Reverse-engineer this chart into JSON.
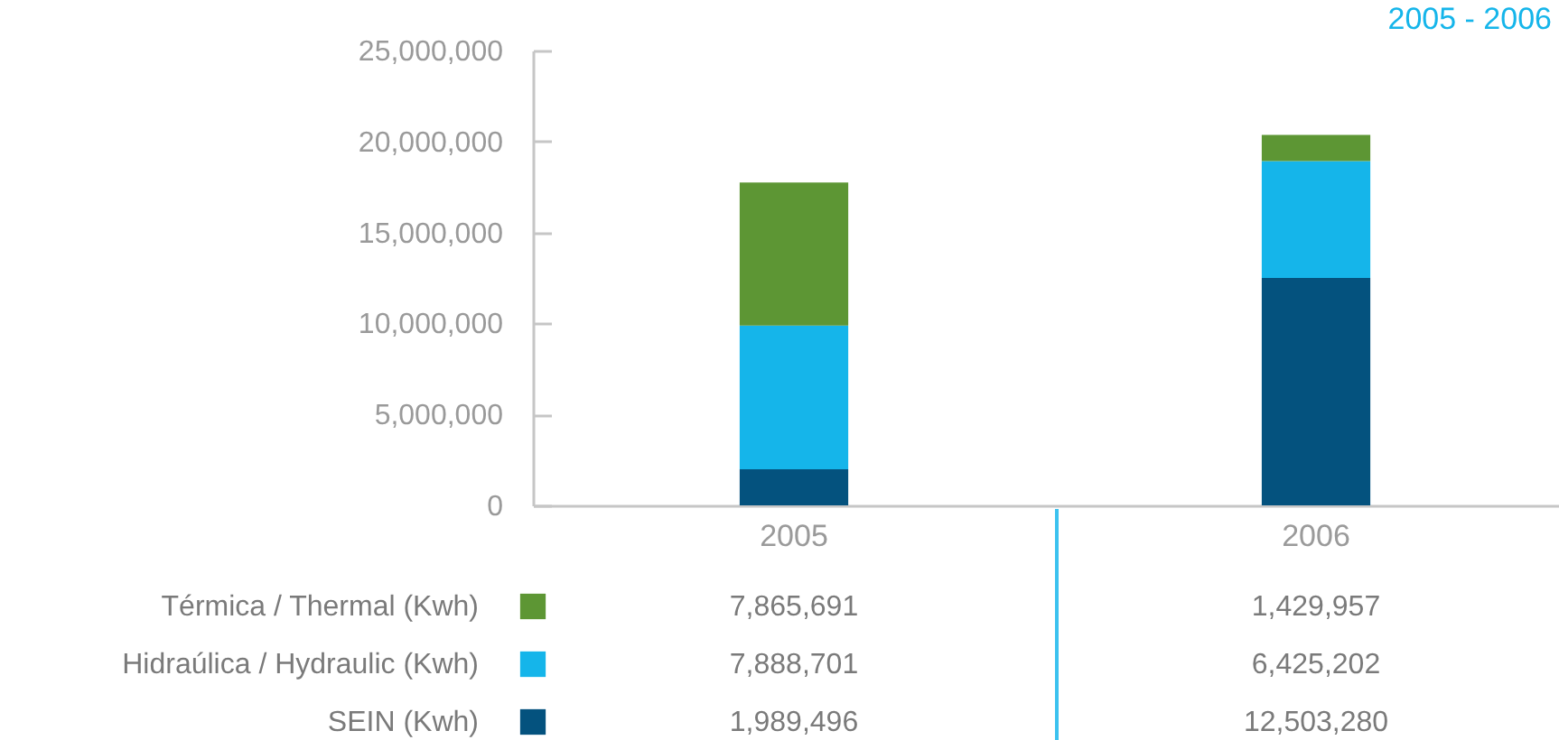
{
  "chart_data": {
    "type": "bar",
    "title": "2005 - 2006",
    "categories": [
      "2005",
      "2006"
    ],
    "series": [
      {
        "name": "SEIN (Kwh)",
        "color": "#04527e",
        "values": [
          1989496,
          12503280
        ],
        "value_labels": [
          "1,989,496",
          "12,503,280"
        ]
      },
      {
        "name": "Hidraúlica / Hydraulic (Kwh)",
        "color": "#15b5ea",
        "values": [
          7888701,
          6425202
        ],
        "value_labels": [
          "7,888,701",
          "6,425,202"
        ]
      },
      {
        "name": "Térmica / Thermal (Kwh)",
        "color": "#5d9634",
        "values": [
          7865691,
          1429957
        ],
        "value_labels": [
          "7,865,691",
          "1,429,957"
        ]
      }
    ],
    "stacked": true,
    "ylim": [
      0,
      25000000
    ],
    "yticks": [
      0,
      {
        "value": 5000000,
        "label": "5,000,000"
      },
      {
        "value": 10000000,
        "label": "10,000,000"
      },
      {
        "value": 15000000,
        "label": "15,000,000"
      },
      {
        "value": 20000000,
        "label": "20,000,000"
      },
      {
        "value": 25000000,
        "label": "25,000,000"
      }
    ],
    "legend": "bottom"
  }
}
